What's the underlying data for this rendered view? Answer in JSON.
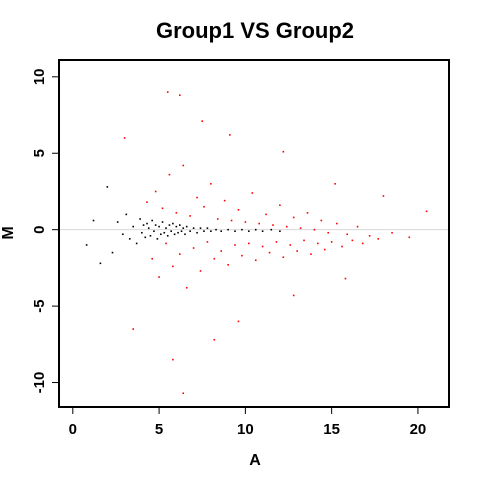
{
  "chart_data": {
    "type": "scatter",
    "title": "Group1 VS Group2",
    "xlabel": "A",
    "ylabel": "M",
    "xlim": [
      -0.8,
      21.8
    ],
    "ylim": [
      -11.6,
      11.1
    ],
    "xticks": [
      0,
      5,
      10,
      15,
      20
    ],
    "xtick_labels": [
      "0",
      "5",
      "10",
      "15",
      "20"
    ],
    "yticks": [
      -10,
      -5,
      0,
      5,
      10
    ],
    "ytick_labels": [
      "-10",
      "-5",
      "0",
      "5",
      "10"
    ],
    "reference_line": {
      "y": 0,
      "color": "#d8d8d8"
    },
    "grid": false,
    "legend": "none",
    "series": [
      {
        "color": "#000000",
        "points": [
          [
            0.8,
            -1.0
          ],
          [
            1.2,
            0.6
          ],
          [
            1.6,
            -2.2
          ],
          [
            2.0,
            2.8
          ],
          [
            2.3,
            -1.5
          ],
          [
            2.6,
            0.5
          ],
          [
            2.9,
            -0.3
          ],
          [
            3.1,
            1.0
          ],
          [
            3.3,
            -0.6
          ],
          [
            3.5,
            0.2
          ],
          [
            3.7,
            -0.9
          ],
          [
            3.9,
            0.7
          ],
          [
            4.0,
            -0.2
          ],
          [
            4.1,
            0.3
          ],
          [
            4.2,
            -0.5
          ],
          [
            4.3,
            0.4
          ],
          [
            4.4,
            0.1
          ],
          [
            4.5,
            -0.4
          ],
          [
            4.6,
            0.6
          ],
          [
            4.7,
            -0.1
          ],
          [
            4.8,
            0.3
          ],
          [
            4.9,
            -0.6
          ],
          [
            5.0,
            0.2
          ],
          [
            5.1,
            -0.3
          ],
          [
            5.2,
            0.5
          ],
          [
            5.3,
            -0.2
          ],
          [
            5.4,
            0.1
          ],
          [
            5.5,
            -0.4
          ],
          [
            5.6,
            0.3
          ],
          [
            5.7,
            -0.1
          ],
          [
            5.8,
            0.4
          ],
          [
            5.9,
            -0.3
          ],
          [
            6.0,
            0.2
          ],
          [
            6.1,
            -0.2
          ],
          [
            6.2,
            0.3
          ],
          [
            6.3,
            -0.1
          ],
          [
            6.4,
            0.1
          ],
          [
            6.5,
            -0.3
          ],
          [
            6.6,
            0.2
          ],
          [
            6.8,
            -0.1
          ],
          [
            7.0,
            0.1
          ],
          [
            7.2,
            -0.2
          ],
          [
            7.4,
            0.1
          ],
          [
            7.6,
            -0.1
          ],
          [
            7.8,
            0.1
          ],
          [
            8.0,
            -0.1
          ],
          [
            8.3,
            0.0
          ],
          [
            8.6,
            -0.1
          ],
          [
            9.0,
            0.0
          ],
          [
            9.4,
            -0.1
          ],
          [
            9.8,
            0.0
          ],
          [
            10.2,
            -0.1
          ],
          [
            10.6,
            0.0
          ],
          [
            11.0,
            -0.1
          ],
          [
            11.5,
            0.0
          ],
          [
            12.0,
            -0.1
          ]
        ]
      },
      {
        "color": "#ff0000",
        "points": [
          [
            4.3,
            1.8
          ],
          [
            4.6,
            -1.9
          ],
          [
            4.8,
            2.5
          ],
          [
            5.0,
            -3.1
          ],
          [
            5.2,
            1.4
          ],
          [
            5.4,
            -0.9
          ],
          [
            5.6,
            3.6
          ],
          [
            5.8,
            -2.4
          ],
          [
            6.0,
            1.1
          ],
          [
            6.2,
            -1.6
          ],
          [
            6.4,
            4.2
          ],
          [
            6.6,
            -3.8
          ],
          [
            6.8,
            0.9
          ],
          [
            7.0,
            -1.2
          ],
          [
            7.2,
            2.1
          ],
          [
            7.4,
            -2.7
          ],
          [
            7.6,
            1.5
          ],
          [
            7.8,
            -0.8
          ],
          [
            8.0,
            3.0
          ],
          [
            8.2,
            -1.9
          ],
          [
            8.4,
            0.7
          ],
          [
            8.6,
            -1.4
          ],
          [
            8.8,
            1.9
          ],
          [
            9.0,
            -2.3
          ],
          [
            9.2,
            0.6
          ],
          [
            9.4,
            -1.0
          ],
          [
            9.6,
            1.3
          ],
          [
            9.8,
            -1.7
          ],
          [
            10.0,
            0.5
          ],
          [
            10.2,
            -0.9
          ],
          [
            10.4,
            2.4
          ],
          [
            10.6,
            -2.0
          ],
          [
            10.8,
            0.4
          ],
          [
            11.0,
            -1.1
          ],
          [
            11.2,
            1.0
          ],
          [
            11.4,
            -1.5
          ],
          [
            11.6,
            0.3
          ],
          [
            11.8,
            -0.8
          ],
          [
            12.0,
            1.6
          ],
          [
            12.2,
            -1.8
          ],
          [
            12.4,
            0.2
          ],
          [
            12.6,
            -1.0
          ],
          [
            12.8,
            0.8
          ],
          [
            13.0,
            -1.4
          ],
          [
            13.2,
            0.1
          ],
          [
            13.4,
            -0.7
          ],
          [
            13.6,
            1.1
          ],
          [
            13.8,
            -1.6
          ],
          [
            14.0,
            0.0
          ],
          [
            14.2,
            -0.9
          ],
          [
            14.4,
            0.6
          ],
          [
            14.6,
            -1.3
          ],
          [
            14.8,
            -0.2
          ],
          [
            15.0,
            -0.8
          ],
          [
            15.3,
            0.4
          ],
          [
            15.6,
            -1.1
          ],
          [
            15.9,
            -0.3
          ],
          [
            16.2,
            -0.7
          ],
          [
            16.5,
            0.2
          ],
          [
            16.8,
            -0.9
          ],
          [
            17.2,
            -0.4
          ],
          [
            17.7,
            -0.6
          ],
          [
            18.5,
            -0.2
          ],
          [
            19.5,
            -0.5
          ],
          [
            5.5,
            9.0
          ],
          [
            6.2,
            8.8
          ],
          [
            6.4,
            -10.7
          ],
          [
            5.8,
            -8.5
          ],
          [
            3.0,
            6.0
          ],
          [
            3.5,
            -6.5
          ],
          [
            7.5,
            7.1
          ],
          [
            8.2,
            -7.2
          ],
          [
            9.1,
            6.2
          ],
          [
            9.6,
            -6.0
          ],
          [
            12.2,
            5.1
          ],
          [
            12.8,
            -4.3
          ],
          [
            15.2,
            3.0
          ],
          [
            15.8,
            -3.2
          ],
          [
            18.0,
            2.2
          ],
          [
            20.5,
            1.2
          ]
        ]
      }
    ]
  }
}
